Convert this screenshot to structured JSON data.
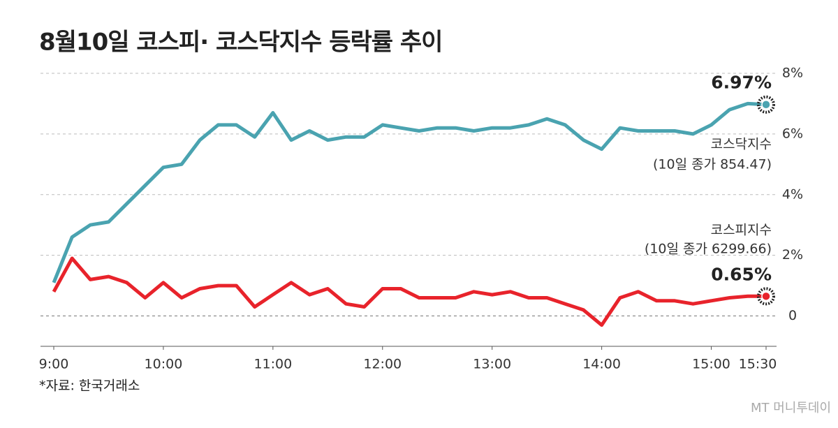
{
  "chart_data": {
    "type": "line",
    "title": "8월10일 코스피· 코스닥지수 등락률 추이",
    "source": "*자료: 한국거래소",
    "logo": "MT 머니투데이",
    "x": [
      "9:00",
      "9:10",
      "9:20",
      "9:30",
      "9:40",
      "9:50",
      "10:00",
      "10:10",
      "10:20",
      "10:30",
      "10:40",
      "10:50",
      "11:00",
      "11:10",
      "11:20",
      "11:30",
      "11:40",
      "11:50",
      "12:00",
      "12:10",
      "12:20",
      "12:30",
      "12:40",
      "12:50",
      "13:00",
      "13:10",
      "13:20",
      "13:30",
      "13:40",
      "13:50",
      "14:00",
      "14:10",
      "14:20",
      "14:30",
      "14:40",
      "14:50",
      "15:00",
      "15:10",
      "15:20",
      "15:30"
    ],
    "xlim": [
      "9:00",
      "15:30"
    ],
    "xticks": [
      "9:00",
      "10:00",
      "11:00",
      "12:00",
      "13:00",
      "14:00",
      "15:00",
      "15:30"
    ],
    "ylim": [
      -1,
      8
    ],
    "yticks": [
      0,
      {
        "value": 2,
        "label": "2%"
      },
      {
        "value": 4,
        "label": "4%"
      },
      {
        "value": 6,
        "label": "6%"
      },
      {
        "value": 8,
        "label": "8%"
      }
    ],
    "grid": true,
    "series": [
      {
        "name": "코스닥지수",
        "note": "(10일 종가 854.47)",
        "color": "#4aa3b0",
        "values": [
          1.1,
          2.6,
          3.0,
          3.1,
          3.7,
          4.3,
          4.9,
          5.0,
          5.8,
          6.3,
          6.3,
          5.9,
          6.7,
          5.8,
          6.1,
          5.8,
          5.9,
          5.9,
          6.3,
          6.2,
          6.1,
          6.2,
          6.2,
          6.1,
          6.2,
          6.2,
          6.3,
          6.5,
          6.3,
          5.8,
          5.5,
          6.2,
          6.1,
          6.1,
          6.1,
          6.0,
          6.3,
          6.8,
          7.0,
          6.97
        ],
        "value_labels": [
          null,
          null,
          null,
          null,
          null,
          null,
          null,
          null,
          null,
          null,
          null,
          null,
          null,
          null,
          null,
          null,
          null,
          null,
          null,
          null,
          null,
          null,
          null,
          null,
          null,
          null,
          null,
          null,
          null,
          null,
          null,
          null,
          null,
          null,
          null,
          null,
          null,
          null,
          null,
          "6.97%"
        ]
      },
      {
        "name": "코스피지수",
        "note": "(10일 종가 6299.66)",
        "color": "#e8232b",
        "values": [
          0.8,
          1.9,
          1.2,
          1.3,
          1.1,
          0.6,
          1.1,
          0.6,
          0.9,
          1.0,
          1.0,
          0.3,
          0.7,
          1.1,
          0.7,
          0.9,
          0.4,
          0.3,
          0.9,
          0.9,
          0.6,
          0.6,
          0.6,
          0.8,
          0.7,
          0.8,
          0.6,
          0.6,
          0.4,
          0.2,
          -0.3,
          0.6,
          0.8,
          0.5,
          0.5,
          0.4,
          0.5,
          0.6,
          0.65,
          0.65
        ],
        "value_labels": [
          null,
          null,
          null,
          null,
          null,
          null,
          null,
          null,
          null,
          null,
          null,
          null,
          null,
          null,
          null,
          null,
          null,
          null,
          null,
          null,
          null,
          null,
          null,
          null,
          null,
          null,
          null,
          null,
          null,
          null,
          null,
          null,
          null,
          null,
          null,
          null,
          null,
          null,
          null,
          "0.65%"
        ]
      }
    ]
  }
}
